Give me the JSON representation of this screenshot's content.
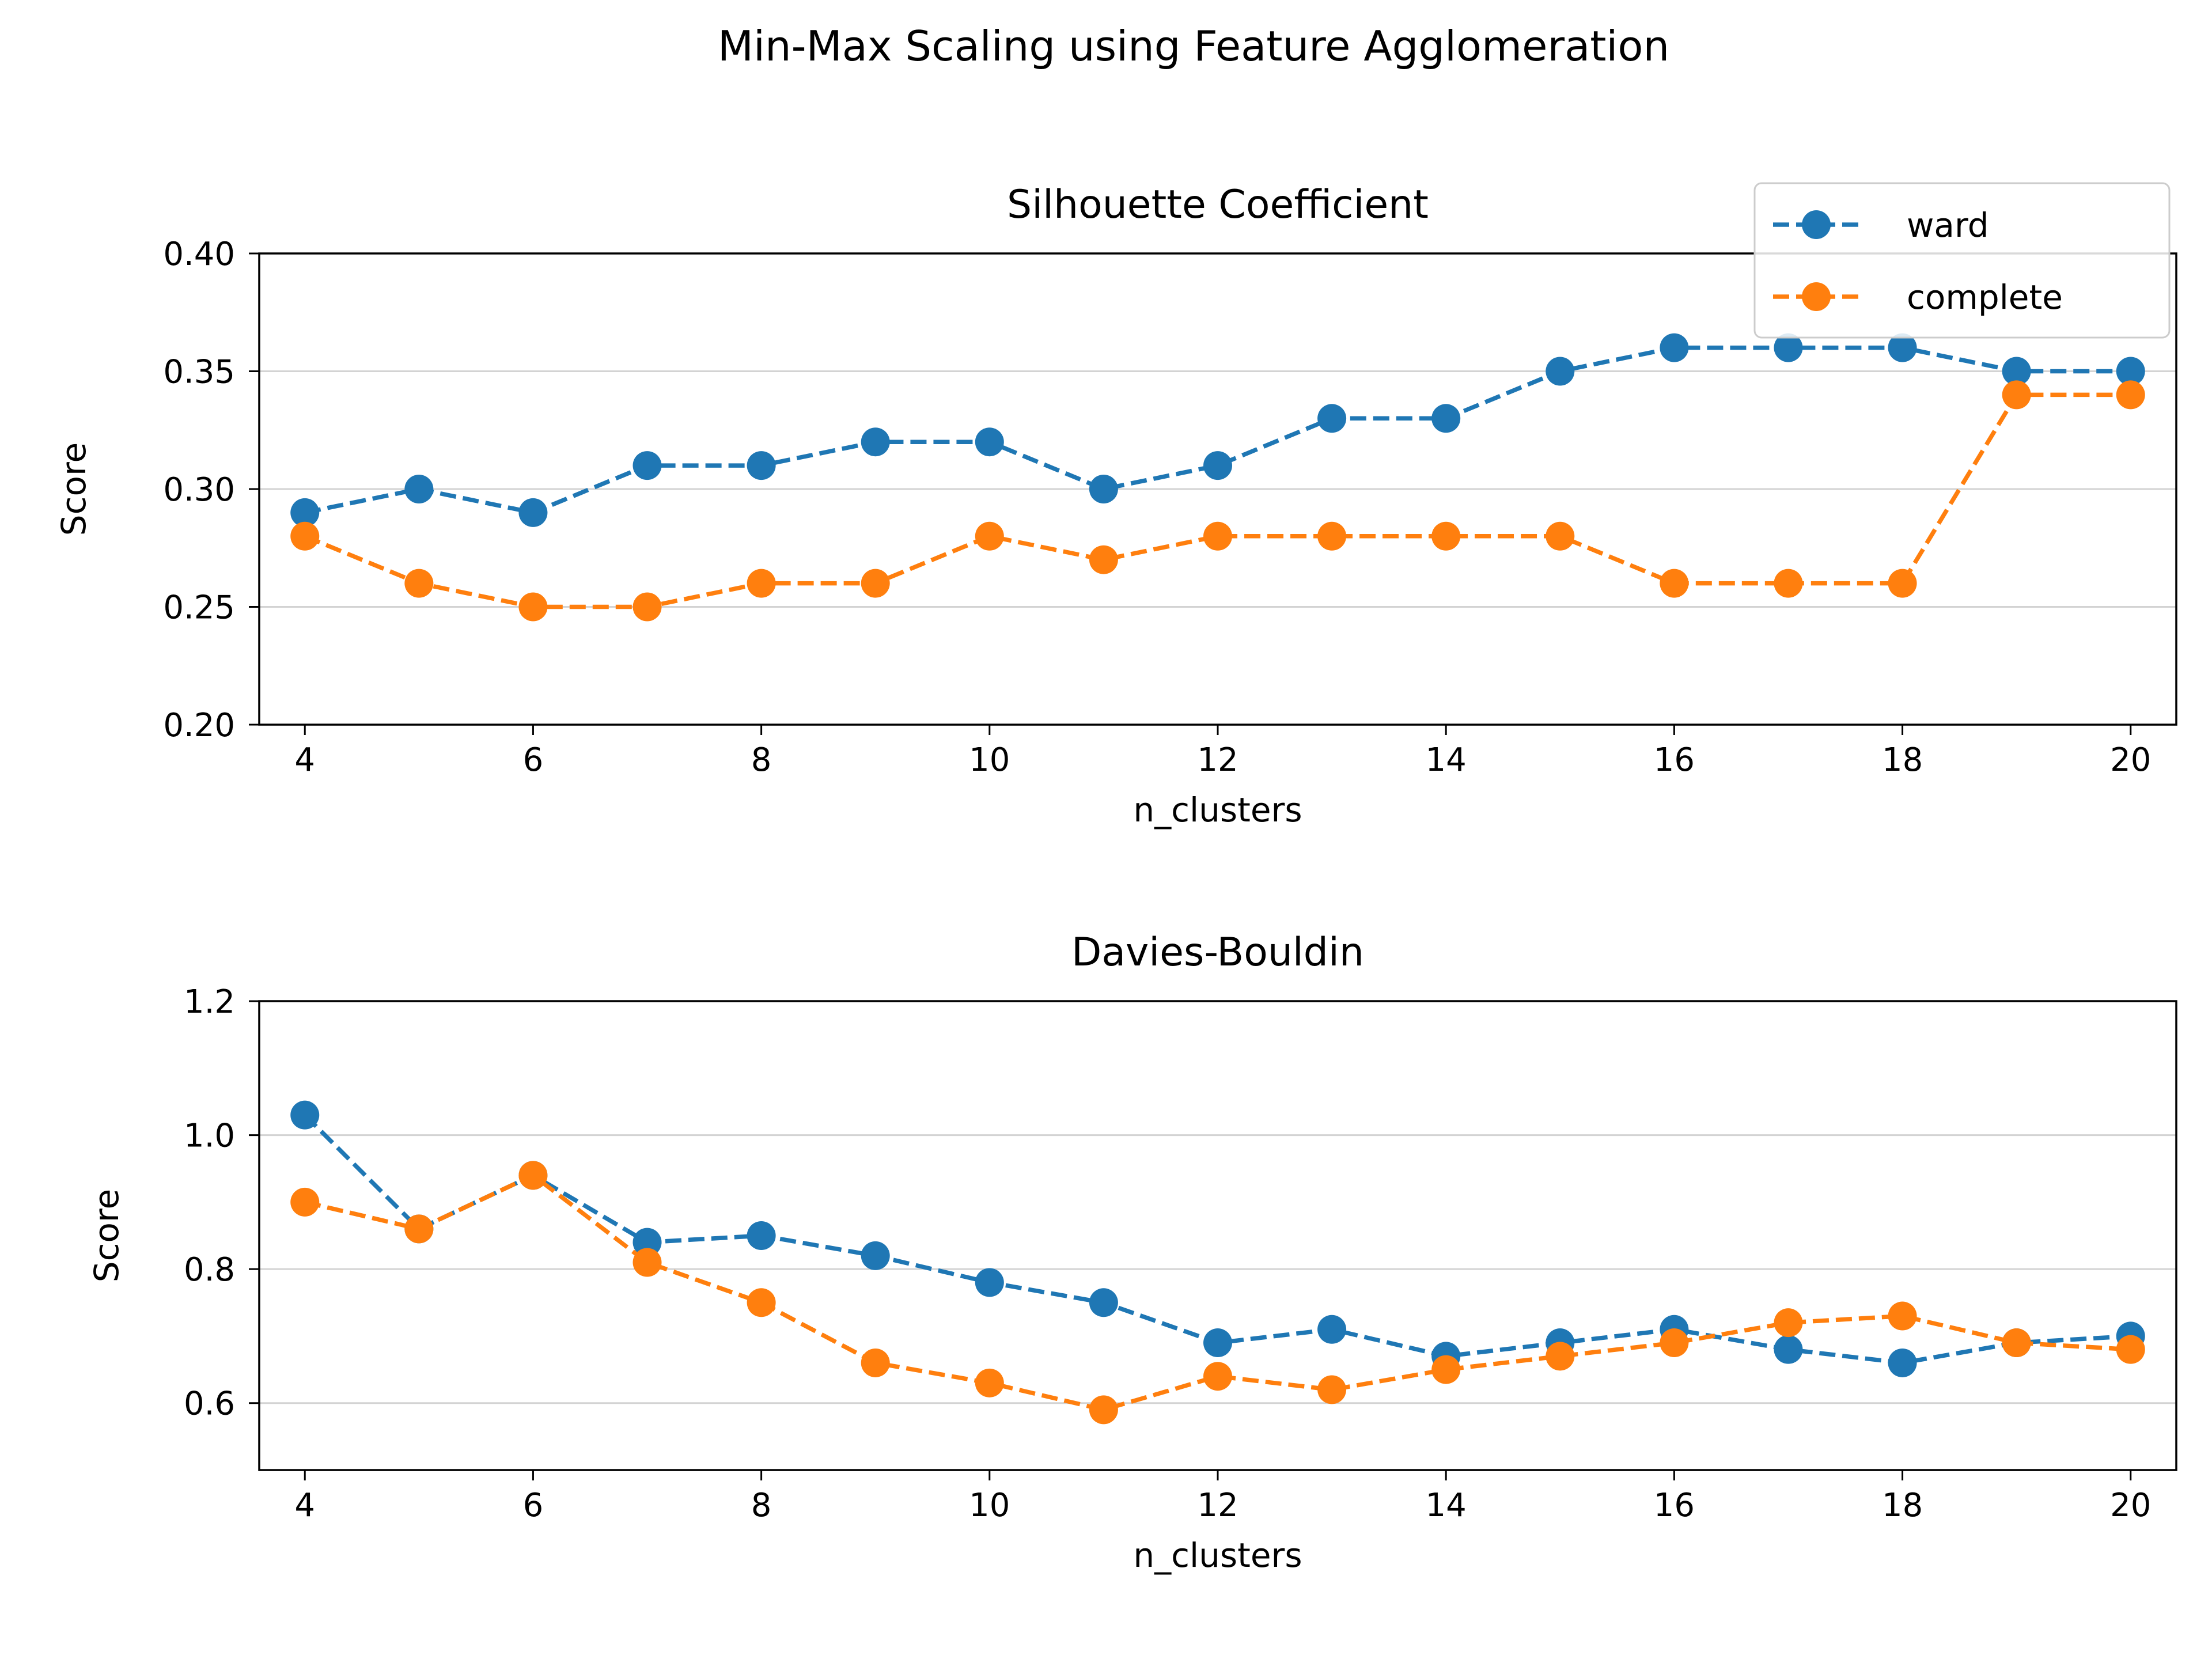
{
  "figure_title": "Min-Max Scaling using Feature Agglomeration",
  "legend": {
    "placement": "top-right",
    "entries": [
      {
        "label": "ward",
        "color": "#1f77b4"
      },
      {
        "label": "complete",
        "color": "#ff7f0e"
      }
    ]
  },
  "chart_data": [
    {
      "type": "line",
      "title": "Silhouette Coefficient",
      "xlabel": "n_clusters",
      "ylabel": "Score",
      "x": [
        4,
        5,
        6,
        7,
        8,
        9,
        10,
        11,
        12,
        13,
        14,
        15,
        16,
        17,
        18,
        19,
        20
      ],
      "xlim": [
        3.6,
        20.4
      ],
      "xticks": [
        4,
        6,
        8,
        10,
        12,
        14,
        16,
        18,
        20
      ],
      "xtick_labels": [
        "4",
        "6",
        "8",
        "10",
        "12",
        "14",
        "16",
        "18",
        "20"
      ],
      "ylim": [
        0.2,
        0.4
      ],
      "yticks": [
        0.2,
        0.25,
        0.3,
        0.35,
        0.4
      ],
      "ytick_labels": [
        "0.20",
        "0.25",
        "0.30",
        "0.35",
        "0.40"
      ],
      "grid": "y",
      "series": [
        {
          "name": "ward",
          "color": "#1f77b4",
          "style": "dashed, circle markers",
          "values": [
            0.29,
            0.3,
            0.29,
            0.31,
            0.31,
            0.32,
            0.32,
            0.3,
            0.31,
            0.33,
            0.33,
            0.35,
            0.36,
            0.36,
            0.36,
            0.35,
            0.35
          ]
        },
        {
          "name": "complete",
          "color": "#ff7f0e",
          "style": "dashed, circle markers",
          "values": [
            0.28,
            0.26,
            0.25,
            0.25,
            0.26,
            0.26,
            0.28,
            0.27,
            0.28,
            0.28,
            0.28,
            0.28,
            0.26,
            0.26,
            0.26,
            0.34,
            0.34
          ]
        }
      ]
    },
    {
      "type": "line",
      "title": "Davies-Bouldin",
      "xlabel": "n_clusters",
      "ylabel": "Score",
      "x": [
        4,
        5,
        6,
        7,
        8,
        9,
        10,
        11,
        12,
        13,
        14,
        15,
        16,
        17,
        18,
        19,
        20
      ],
      "xlim": [
        3.6,
        20.4
      ],
      "xticks": [
        4,
        6,
        8,
        10,
        12,
        14,
        16,
        18,
        20
      ],
      "xtick_labels": [
        "4",
        "6",
        "8",
        "10",
        "12",
        "14",
        "16",
        "18",
        "20"
      ],
      "ylim": [
        0.5,
        1.2
      ],
      "yticks": [
        0.6,
        0.8,
        1.0,
        1.2
      ],
      "ytick_labels": [
        "0.6",
        "0.8",
        "1.0",
        "1.2"
      ],
      "grid": "y",
      "series": [
        {
          "name": "ward",
          "color": "#1f77b4",
          "style": "dashed, circle markers",
          "values": [
            1.03,
            0.86,
            0.94,
            0.84,
            0.85,
            0.82,
            0.78,
            0.75,
            0.69,
            0.71,
            0.67,
            0.69,
            0.71,
            0.68,
            0.66,
            0.69,
            0.7
          ]
        },
        {
          "name": "complete",
          "color": "#ff7f0e",
          "style": "dashed, circle markers",
          "values": [
            0.9,
            0.86,
            0.94,
            0.81,
            0.75,
            0.66,
            0.63,
            0.59,
            0.64,
            0.62,
            0.65,
            0.67,
            0.69,
            0.72,
            0.73,
            0.69,
            0.68
          ]
        }
      ]
    }
  ]
}
